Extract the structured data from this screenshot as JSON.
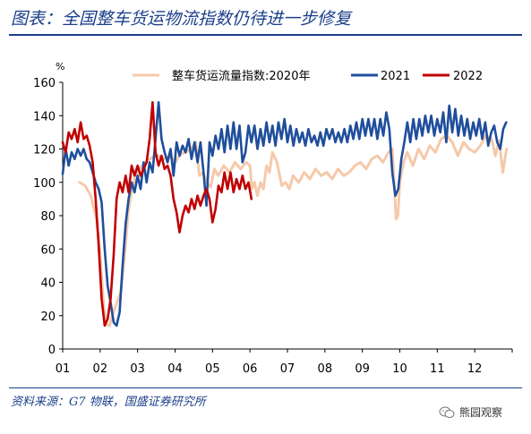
{
  "header": {
    "title": "图表：全国整车货运物流指数仍待进一步修复"
  },
  "footer": {
    "source": "资料来源：G7 物联，国盛证券研究所",
    "watermark": "熊园观察"
  },
  "chart_data": {
    "type": "line",
    "ylabel": "%",
    "ylim": [
      0,
      160
    ],
    "yticks": [
      0,
      20,
      40,
      60,
      80,
      100,
      120,
      140,
      160
    ],
    "xlim": [
      1,
      13
    ],
    "xticks": [
      "01",
      "02",
      "03",
      "04",
      "05",
      "06",
      "07",
      "08",
      "09",
      "10",
      "11",
      "12"
    ],
    "legend_position": "top",
    "colors": {
      "2020": "#f5c9a9",
      "2021": "#1f4e9c",
      "2022": "#c00000"
    },
    "series": [
      {
        "name": "整车货运流量指数:2020年",
        "color_key": "2020",
        "points": [
          [
            1.45,
            100
          ],
          [
            1.6,
            98
          ],
          [
            1.75,
            92
          ],
          [
            1.9,
            78
          ],
          [
            2.0,
            58
          ],
          [
            2.05,
            40
          ],
          [
            2.1,
            25
          ],
          [
            2.15,
            15
          ],
          [
            2.25,
            14
          ],
          [
            2.35,
            22
          ],
          [
            2.45,
            28
          ],
          [
            2.55,
            34
          ],
          [
            2.65,
            55
          ],
          [
            2.75,
            82
          ],
          [
            2.85,
            96
          ],
          [
            2.95,
            104
          ],
          [
            3.05,
            108
          ],
          [
            3.2,
            112
          ],
          [
            3.4,
            115
          ],
          [
            3.55,
            116
          ],
          [
            3.7,
            114
          ],
          [
            3.85,
            116
          ],
          [
            4.0,
            112
          ],
          [
            4.15,
            117
          ],
          [
            4.3,
            118
          ],
          [
            4.45,
            121
          ],
          [
            4.55,
            124
          ],
          [
            4.65,
            104
          ],
          [
            4.75,
            106
          ],
          [
            4.85,
            100
          ],
          [
            4.95,
            97
          ],
          [
            5.05,
            108
          ],
          [
            5.15,
            104
          ],
          [
            5.3,
            110
          ],
          [
            5.45,
            106
          ],
          [
            5.6,
            112
          ],
          [
            5.75,
            108
          ],
          [
            5.9,
            112
          ],
          [
            6.0,
            110
          ],
          [
            6.05,
            96
          ],
          [
            6.12,
            100
          ],
          [
            6.2,
            92
          ],
          [
            6.28,
            100
          ],
          [
            6.36,
            96
          ],
          [
            6.44,
            110
          ],
          [
            6.52,
            106
          ],
          [
            6.6,
            118
          ],
          [
            6.72,
            112
          ],
          [
            6.85,
            98
          ],
          [
            6.95,
            100
          ],
          [
            7.05,
            96
          ],
          [
            7.15,
            104
          ],
          [
            7.3,
            100
          ],
          [
            7.45,
            106
          ],
          [
            7.6,
            102
          ],
          [
            7.75,
            108
          ],
          [
            7.9,
            104
          ],
          [
            8.05,
            106
          ],
          [
            8.2,
            102
          ],
          [
            8.35,
            108
          ],
          [
            8.5,
            104
          ],
          [
            8.65,
            106
          ],
          [
            8.8,
            110
          ],
          [
            8.95,
            112
          ],
          [
            9.1,
            108
          ],
          [
            9.25,
            114
          ],
          [
            9.4,
            116
          ],
          [
            9.55,
            112
          ],
          [
            9.7,
            118
          ],
          [
            9.8,
            120
          ],
          [
            9.85,
            100
          ],
          [
            9.9,
            78
          ],
          [
            9.95,
            80
          ],
          [
            10.0,
            100
          ],
          [
            10.1,
            112
          ],
          [
            10.2,
            118
          ],
          [
            10.35,
            110
          ],
          [
            10.5,
            120
          ],
          [
            10.65,
            114
          ],
          [
            10.8,
            122
          ],
          [
            10.95,
            118
          ],
          [
            11.1,
            126
          ],
          [
            11.25,
            128
          ],
          [
            11.4,
            124
          ],
          [
            11.55,
            116
          ],
          [
            11.7,
            124
          ],
          [
            11.85,
            120
          ],
          [
            12.0,
            118
          ],
          [
            12.15,
            122
          ],
          [
            12.3,
            128
          ],
          [
            12.45,
            126
          ],
          [
            12.55,
            116
          ],
          [
            12.65,
            125
          ],
          [
            12.75,
            106
          ],
          [
            12.85,
            120
          ]
        ]
      },
      {
        "name": "2021",
        "color_key": "2021",
        "points": [
          [
            1.0,
            105
          ],
          [
            1.08,
            120
          ],
          [
            1.16,
            110
          ],
          [
            1.24,
            118
          ],
          [
            1.32,
            114
          ],
          [
            1.4,
            120
          ],
          [
            1.48,
            116
          ],
          [
            1.56,
            120
          ],
          [
            1.64,
            114
          ],
          [
            1.72,
            112
          ],
          [
            1.8,
            106
          ],
          [
            1.88,
            100
          ],
          [
            1.96,
            96
          ],
          [
            2.04,
            88
          ],
          [
            2.12,
            60
          ],
          [
            2.2,
            38
          ],
          [
            2.28,
            28
          ],
          [
            2.36,
            16
          ],
          [
            2.44,
            14
          ],
          [
            2.52,
            22
          ],
          [
            2.6,
            50
          ],
          [
            2.68,
            75
          ],
          [
            2.76,
            90
          ],
          [
            2.84,
            100
          ],
          [
            2.92,
            94
          ],
          [
            3.0,
            104
          ],
          [
            3.08,
            96
          ],
          [
            3.16,
            112
          ],
          [
            3.24,
            100
          ],
          [
            3.32,
            112
          ],
          [
            3.4,
            106
          ],
          [
            3.48,
            126
          ],
          [
            3.56,
            148
          ],
          [
            3.64,
            126
          ],
          [
            3.72,
            118
          ],
          [
            3.8,
            112
          ],
          [
            3.88,
            120
          ],
          [
            3.96,
            104
          ],
          [
            4.04,
            124
          ],
          [
            4.12,
            116
          ],
          [
            4.2,
            122
          ],
          [
            4.28,
            118
          ],
          [
            4.36,
            126
          ],
          [
            4.44,
            114
          ],
          [
            4.52,
            124
          ],
          [
            4.6,
            112
          ],
          [
            4.68,
            124
          ],
          [
            4.76,
            106
          ],
          [
            4.84,
            86
          ],
          [
            4.92,
            124
          ],
          [
            5.0,
            116
          ],
          [
            5.08,
            128
          ],
          [
            5.16,
            120
          ],
          [
            5.24,
            132
          ],
          [
            5.32,
            118
          ],
          [
            5.4,
            134
          ],
          [
            5.48,
            120
          ],
          [
            5.56,
            136
          ],
          [
            5.64,
            120
          ],
          [
            5.72,
            134
          ],
          [
            5.8,
            112
          ],
          [
            5.88,
            118
          ],
          [
            5.96,
            134
          ],
          [
            6.04,
            124
          ],
          [
            6.12,
            134
          ],
          [
            6.2,
            120
          ],
          [
            6.28,
            132
          ],
          [
            6.36,
            122
          ],
          [
            6.44,
            136
          ],
          [
            6.52,
            124
          ],
          [
            6.6,
            134
          ],
          [
            6.68,
            122
          ],
          [
            6.76,
            136
          ],
          [
            6.84,
            126
          ],
          [
            6.92,
            138
          ],
          [
            7.0,
            124
          ],
          [
            7.08,
            134
          ],
          [
            7.16,
            122
          ],
          [
            7.24,
            132
          ],
          [
            7.32,
            124
          ],
          [
            7.4,
            130
          ],
          [
            7.48,
            122
          ],
          [
            7.56,
            132
          ],
          [
            7.64,
            124
          ],
          [
            7.72,
            128
          ],
          [
            7.8,
            122
          ],
          [
            7.88,
            130
          ],
          [
            7.96,
            122
          ],
          [
            8.04,
            132
          ],
          [
            8.12,
            126
          ],
          [
            8.2,
            132
          ],
          [
            8.28,
            124
          ],
          [
            8.36,
            130
          ],
          [
            8.44,
            124
          ],
          [
            8.52,
            132
          ],
          [
            8.6,
            124
          ],
          [
            8.68,
            134
          ],
          [
            8.76,
            126
          ],
          [
            8.84,
            136
          ],
          [
            8.92,
            126
          ],
          [
            9.0,
            138
          ],
          [
            9.08,
            128
          ],
          [
            9.16,
            138
          ],
          [
            9.24,
            128
          ],
          [
            9.32,
            138
          ],
          [
            9.4,
            126
          ],
          [
            9.48,
            138
          ],
          [
            9.56,
            128
          ],
          [
            9.64,
            142
          ],
          [
            9.72,
            132
          ],
          [
            9.8,
            106
          ],
          [
            9.88,
            92
          ],
          [
            9.96,
            96
          ],
          [
            10.04,
            114
          ],
          [
            10.12,
            124
          ],
          [
            10.2,
            136
          ],
          [
            10.28,
            124
          ],
          [
            10.36,
            138
          ],
          [
            10.44,
            126
          ],
          [
            10.52,
            138
          ],
          [
            10.6,
            128
          ],
          [
            10.68,
            140
          ],
          [
            10.76,
            130
          ],
          [
            10.84,
            140
          ],
          [
            10.92,
            128
          ],
          [
            11.0,
            138
          ],
          [
            11.08,
            130
          ],
          [
            11.16,
            142
          ],
          [
            11.24,
            124
          ],
          [
            11.32,
            146
          ],
          [
            11.4,
            130
          ],
          [
            11.48,
            144
          ],
          [
            11.56,
            128
          ],
          [
            11.64,
            140
          ],
          [
            11.72,
            128
          ],
          [
            11.8,
            138
          ],
          [
            11.88,
            126
          ],
          [
            11.96,
            136
          ],
          [
            12.04,
            128
          ],
          [
            12.12,
            138
          ],
          [
            12.2,
            126
          ],
          [
            12.28,
            136
          ],
          [
            12.36,
            122
          ],
          [
            12.44,
            130
          ],
          [
            12.52,
            134
          ],
          [
            12.6,
            124
          ],
          [
            12.68,
            120
          ],
          [
            12.76,
            132
          ],
          [
            12.84,
            136
          ]
        ]
      },
      {
        "name": "2022",
        "color_key": "2022",
        "points": [
          [
            1.0,
            124
          ],
          [
            1.08,
            118
          ],
          [
            1.16,
            130
          ],
          [
            1.24,
            126
          ],
          [
            1.32,
            132
          ],
          [
            1.4,
            124
          ],
          [
            1.48,
            136
          ],
          [
            1.56,
            126
          ],
          [
            1.64,
            128
          ],
          [
            1.72,
            122
          ],
          [
            1.8,
            112
          ],
          [
            1.88,
            90
          ],
          [
            1.96,
            62
          ],
          [
            2.04,
            30
          ],
          [
            2.12,
            14
          ],
          [
            2.2,
            18
          ],
          [
            2.28,
            30
          ],
          [
            2.36,
            56
          ],
          [
            2.44,
            90
          ],
          [
            2.52,
            100
          ],
          [
            2.6,
            94
          ],
          [
            2.68,
            104
          ],
          [
            2.76,
            94
          ],
          [
            2.84,
            110
          ],
          [
            2.92,
            104
          ],
          [
            3.0,
            110
          ],
          [
            3.08,
            104
          ],
          [
            3.16,
            108
          ],
          [
            3.24,
            112
          ],
          [
            3.32,
            126
          ],
          [
            3.4,
            148
          ],
          [
            3.48,
            118
          ],
          [
            3.56,
            110
          ],
          [
            3.64,
            116
          ],
          [
            3.72,
            108
          ],
          [
            3.8,
            110
          ],
          [
            3.88,
            104
          ],
          [
            3.96,
            90
          ],
          [
            4.04,
            82
          ],
          [
            4.12,
            70
          ],
          [
            4.2,
            80
          ],
          [
            4.28,
            86
          ],
          [
            4.36,
            82
          ],
          [
            4.44,
            90
          ],
          [
            4.52,
            84
          ],
          [
            4.6,
            92
          ],
          [
            4.68,
            86
          ],
          [
            4.76,
            92
          ],
          [
            4.84,
            96
          ],
          [
            4.92,
            90
          ],
          [
            5.0,
            76
          ],
          [
            5.08,
            84
          ],
          [
            5.16,
            98
          ],
          [
            5.24,
            94
          ],
          [
            5.32,
            106
          ],
          [
            5.4,
            96
          ],
          [
            5.48,
            106
          ],
          [
            5.56,
            94
          ],
          [
            5.64,
            102
          ],
          [
            5.72,
            96
          ],
          [
            5.8,
            104
          ],
          [
            5.88,
            96
          ],
          [
            5.96,
            100
          ],
          [
            6.04,
            90
          ]
        ]
      }
    ]
  }
}
